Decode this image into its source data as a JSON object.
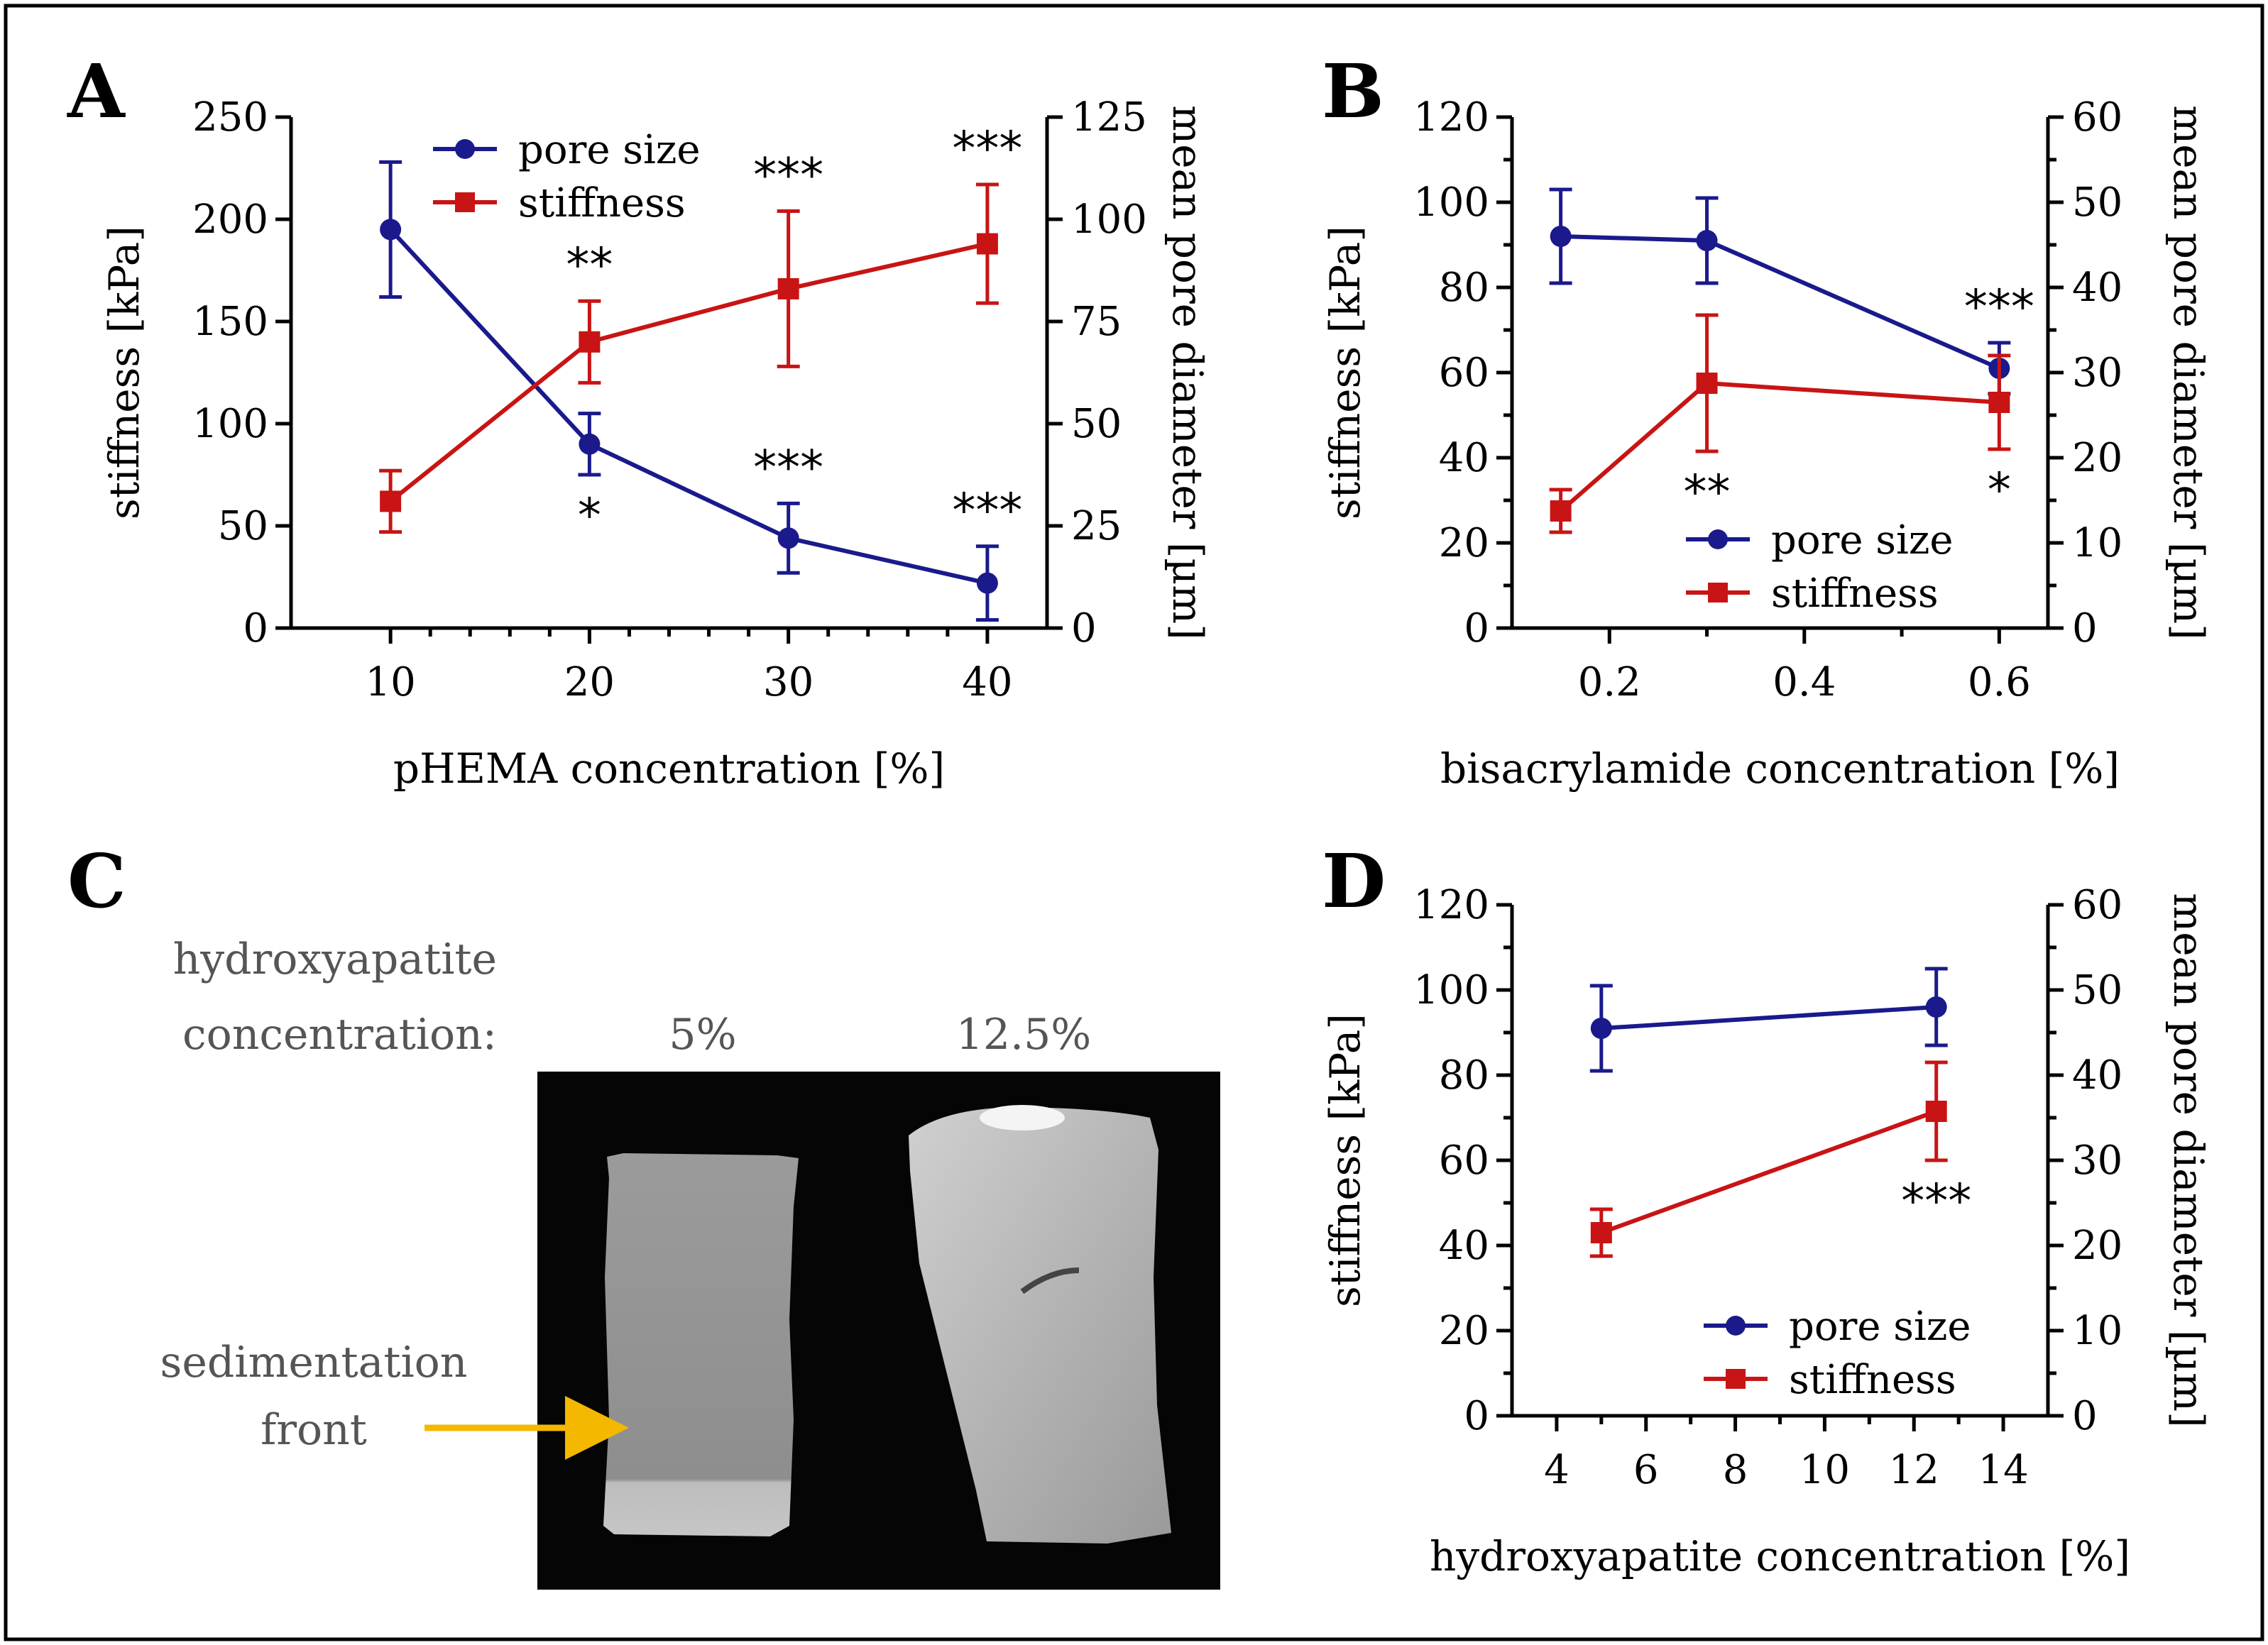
{
  "colors": {
    "pore": "#1a1a8c",
    "stiff": "#c81414",
    "arrow": "#f5b800"
  },
  "chart_data": [
    {
      "type": "line",
      "panel_label": "A",
      "xlabel": "pHEMA concentration [%]",
      "ylabel_left": "stiffness [kPa]",
      "ylabel_right": "mean pore diameter [µm]",
      "xlim": [
        5,
        43
      ],
      "xticks": [
        10,
        20,
        30,
        40
      ],
      "ylim_left": [
        0,
        250
      ],
      "yticks_left": [
        0,
        50,
        100,
        150,
        200,
        250
      ],
      "ylim_right": [
        0,
        125
      ],
      "yticks_right": [
        0,
        25,
        50,
        75,
        100,
        125
      ],
      "legend": [
        "pore size",
        "stiffness"
      ],
      "series": [
        {
          "name": "pore size",
          "axis": "right",
          "color": "#1a1a8c",
          "marker": "circle",
          "x": [
            10,
            20,
            30,
            40
          ],
          "y": [
            97.5,
            45,
            22,
            11
          ],
          "err": [
            16.5,
            7.5,
            8.5,
            9
          ],
          "sig": [
            "",
            "*",
            "***",
            "***"
          ],
          "sig_pos": [
            "",
            "below",
            "above",
            "above"
          ]
        },
        {
          "name": "stiffness",
          "axis": "left",
          "color": "#c81414",
          "marker": "square",
          "x": [
            10,
            20,
            30,
            40
          ],
          "y": [
            62,
            140,
            166,
            188
          ],
          "err": [
            15,
            20,
            38,
            29
          ],
          "sig": [
            "",
            "**",
            "***",
            "***"
          ],
          "sig_pos": [
            "",
            "above",
            "above",
            "above"
          ]
        }
      ]
    },
    {
      "type": "line",
      "panel_label": "B",
      "xlabel": "bisacrylamide concentration [%]",
      "ylabel_left": "stiffness [kPa]",
      "ylabel_right": "mean pore diameter [µm]",
      "xlim": [
        0.1,
        0.65
      ],
      "xticks": [
        0.2,
        0.4,
        0.6
      ],
      "ylim_left": [
        0,
        120
      ],
      "yticks_left": [
        0,
        20,
        40,
        60,
        80,
        100,
        120
      ],
      "ylim_right": [
        0,
        60
      ],
      "yticks_right": [
        0,
        10,
        20,
        30,
        40,
        50,
        60
      ],
      "legend": [
        "pore size",
        "stiffness"
      ],
      "series": [
        {
          "name": "pore size",
          "axis": "right",
          "color": "#1a1a8c",
          "marker": "circle",
          "x": [
            0.15,
            0.3,
            0.6
          ],
          "y": [
            46,
            45.5,
            30.5
          ],
          "err": [
            5.5,
            5,
            3
          ],
          "sig": [
            "",
            "",
            "***"
          ],
          "sig_pos": [
            "",
            "",
            "above"
          ]
        },
        {
          "name": "stiffness",
          "axis": "left",
          "color": "#c81414",
          "marker": "square",
          "x": [
            0.15,
            0.3,
            0.6
          ],
          "y": [
            27.5,
            57.5,
            53
          ],
          "err": [
            5,
            16,
            11
          ],
          "sig": [
            "",
            "**",
            "*"
          ],
          "sig_pos": [
            "",
            "below",
            "below"
          ]
        }
      ]
    },
    {
      "type": "line",
      "panel_label": "D",
      "xlabel": "hydroxyapatite concentration [%]",
      "ylabel_left": "stiffness [kPa]",
      "ylabel_right": "mean pore diameter [µm]",
      "xlim": [
        3,
        15
      ],
      "xticks": [
        4,
        6,
        8,
        10,
        12,
        14
      ],
      "ylim_left": [
        0,
        120
      ],
      "yticks_left": [
        0,
        20,
        40,
        60,
        80,
        100,
        120
      ],
      "ylim_right": [
        0,
        60
      ],
      "yticks_right": [
        0,
        10,
        20,
        30,
        40,
        50,
        60
      ],
      "legend": [
        "pore size",
        "stiffness"
      ],
      "series": [
        {
          "name": "pore size",
          "axis": "right",
          "color": "#1a1a8c",
          "marker": "circle",
          "x": [
            5,
            12.5
          ],
          "y": [
            45.5,
            48
          ],
          "err": [
            5,
            4.5
          ],
          "sig": [
            "",
            ""
          ],
          "sig_pos": [
            "",
            ""
          ]
        },
        {
          "name": "stiffness",
          "axis": "left",
          "color": "#c81414",
          "marker": "square",
          "x": [
            5,
            12.5
          ],
          "y": [
            43,
            71.5
          ],
          "err": [
            5.5,
            11.5
          ],
          "sig": [
            "",
            "***"
          ],
          "sig_pos": [
            "",
            "below"
          ]
        }
      ]
    }
  ],
  "panel_c": {
    "letter": "C",
    "heading_line1": "hydroxyapatite",
    "heading_line2": "concentration:",
    "col1_label": "5%",
    "col2_label": "12.5%",
    "annotation_line1": "sedimentation",
    "annotation_line2": "front"
  }
}
